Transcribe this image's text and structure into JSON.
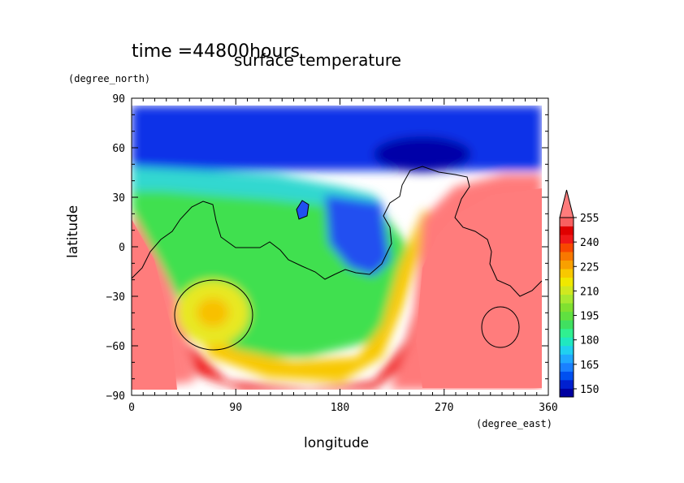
{
  "chart_data": {
    "type": "heatmap",
    "time_label": "time =44800hours",
    "title": "surface temperature",
    "xlabel": "longitude",
    "ylabel": "latitude",
    "x_units": "(degree_east)",
    "y_units": "(degree_north)",
    "xlim": [
      0,
      360
    ],
    "ylim": [
      -90,
      90
    ],
    "x_ticks": [
      0,
      90,
      180,
      270,
      360
    ],
    "y_ticks": [
      90,
      60,
      30,
      0,
      -30,
      -60,
      -90
    ],
    "colorbar": {
      "labels": [
        255,
        240,
        225,
        210,
        195,
        180,
        165,
        150
      ],
      "levels": [
        145,
        150,
        155,
        160,
        165,
        170,
        175,
        180,
        185,
        190,
        195,
        200,
        205,
        210,
        215,
        220,
        225,
        230,
        235,
        240,
        245,
        250,
        255,
        260
      ],
      "colors": [
        "#0000a0",
        "#0020d0",
        "#0050f0",
        "#1a80ff",
        "#20a8ff",
        "#20d0f0",
        "#20e8c0",
        "#30f090",
        "#40e060",
        "#60e040",
        "#80e030",
        "#a8e830",
        "#d0e820",
        "#f0e800",
        "#f8c800",
        "#f8a000",
        "#f87800",
        "#f84800",
        "#f01818",
        "#e00000",
        "#f86060",
        "#ff7c7c"
      ],
      "extend": "max"
    },
    "grid": false
  }
}
